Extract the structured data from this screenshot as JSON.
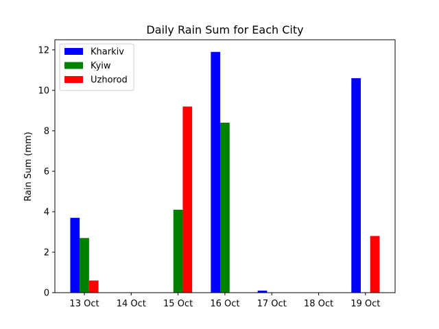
{
  "chart_data": {
    "type": "bar",
    "title": "Daily Rain Sum for Each City",
    "xlabel": "",
    "ylabel": "Rain Sum (mm)",
    "categories": [
      "13 Oct",
      "14 Oct",
      "15 Oct",
      "16 Oct",
      "17 Oct",
      "18 Oct",
      "19 Oct"
    ],
    "ylim": [
      0,
      12.5
    ],
    "yticks": [
      0,
      2,
      4,
      6,
      8,
      10,
      12
    ],
    "grid": false,
    "legend_position": "top-left",
    "series": [
      {
        "name": "Kharkiv",
        "color": "#0000ff",
        "values": [
          3.7,
          0,
          0,
          11.9,
          0.1,
          0,
          10.6
        ]
      },
      {
        "name": "Kyiw",
        "color": "#008000",
        "values": [
          2.7,
          0,
          4.1,
          8.4,
          0,
          0,
          0
        ]
      },
      {
        "name": "Uzhorod",
        "color": "#ff0000",
        "values": [
          0.6,
          0,
          9.2,
          0,
          0,
          0,
          2.8
        ]
      }
    ]
  }
}
